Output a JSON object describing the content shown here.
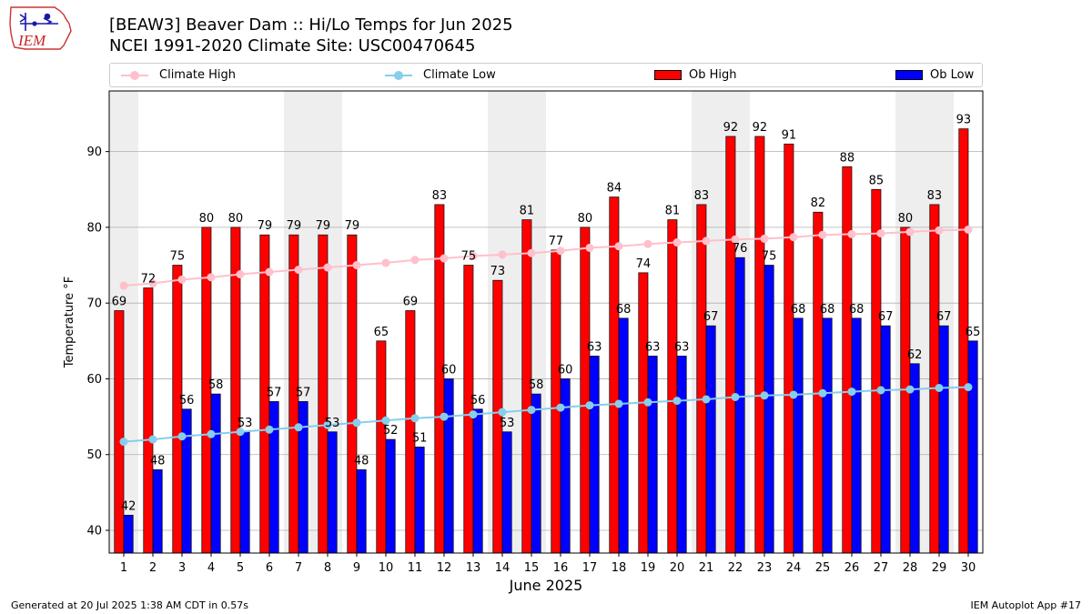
{
  "header": {
    "title_line1": "[BEAW3] Beaver Dam :: Hi/Lo Temps for Jun 2025",
    "title_line2": "NCEI 1991-2020 Climate Site: USC00470645",
    "logo_text": "IEM"
  },
  "legend": {
    "climate_high": "Climate High",
    "climate_low": "Climate Low",
    "ob_high": "Ob High",
    "ob_low": "Ob Low"
  },
  "colors": {
    "ob_high": "#ff0000",
    "ob_low": "#0000ff",
    "climate_high": "#ffc0cb",
    "climate_low": "#87ceeb",
    "weekend_shade": "#eeeeee",
    "grid": "#b0b0b0"
  },
  "footer": {
    "left": "Generated at 20 Jul 2025 1:38 AM CDT in 0.57s",
    "right": "IEM Autoplot App #17"
  },
  "chart_data": {
    "type": "bar",
    "xlabel": "June 2025",
    "ylabel": "Temperature °F",
    "ylim": [
      37,
      98
    ],
    "yticks": [
      40,
      50,
      60,
      70,
      80,
      90
    ],
    "grid": "horizontal",
    "legend_position": "top",
    "categories": [
      "1",
      "2",
      "3",
      "4",
      "5",
      "6",
      "7",
      "8",
      "9",
      "10",
      "11",
      "12",
      "13",
      "14",
      "15",
      "16",
      "17",
      "18",
      "19",
      "20",
      "21",
      "22",
      "23",
      "24",
      "25",
      "26",
      "27",
      "28",
      "29",
      "30"
    ],
    "shaded_days": [
      1,
      7,
      8,
      14,
      15,
      21,
      22,
      28,
      29
    ],
    "series": [
      {
        "name": "Ob High",
        "kind": "bar",
        "values": [
          69,
          72,
          75,
          80,
          80,
          79,
          79,
          79,
          79,
          65,
          69,
          83,
          75,
          73,
          81,
          77,
          80,
          84,
          74,
          81,
          83,
          92,
          92,
          91,
          82,
          88,
          85,
          80,
          83,
          93
        ]
      },
      {
        "name": "Ob Low",
        "kind": "bar",
        "values": [
          42,
          48,
          56,
          58,
          53,
          57,
          57,
          53,
          48,
          52,
          51,
          60,
          56,
          53,
          58,
          60,
          63,
          68,
          63,
          63,
          67,
          76,
          75,
          68,
          68,
          68,
          67,
          62,
          67,
          65
        ]
      },
      {
        "name": "Climate High",
        "kind": "line",
        "values": [
          72.3,
          72.6,
          73.1,
          73.4,
          73.8,
          74.1,
          74.4,
          74.7,
          75.0,
          75.3,
          75.7,
          75.9,
          76.2,
          76.4,
          76.6,
          76.9,
          77.3,
          77.5,
          77.8,
          78.0,
          78.2,
          78.4,
          78.5,
          78.7,
          79.0,
          79.1,
          79.2,
          79.4,
          79.6,
          79.7
        ]
      },
      {
        "name": "Climate Low",
        "kind": "line",
        "values": [
          51.7,
          52.0,
          52.4,
          52.7,
          53.0,
          53.3,
          53.6,
          53.9,
          54.2,
          54.5,
          54.8,
          55.0,
          55.3,
          55.6,
          55.9,
          56.2,
          56.5,
          56.7,
          56.9,
          57.1,
          57.3,
          57.6,
          57.8,
          57.9,
          58.1,
          58.3,
          58.5,
          58.6,
          58.8,
          58.9
        ]
      }
    ]
  }
}
